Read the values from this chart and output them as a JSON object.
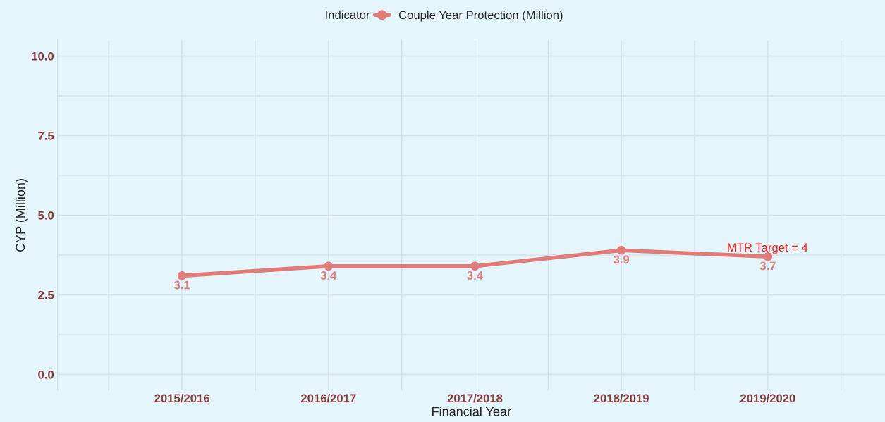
{
  "chart_data": {
    "type": "line",
    "xlabel": "Financial Year",
    "ylabel": "CYP (Million)",
    "legend_title": "Indicator",
    "categories": [
      "2015/2016",
      "2016/2017",
      "2017/2018",
      "2018/2019",
      "2019/2020"
    ],
    "series": [
      {
        "name": "Couple Year Protection (Million)",
        "color": "#e07b78",
        "values": [
          3.1,
          3.4,
          3.4,
          3.9,
          3.7
        ]
      }
    ],
    "ylim": [
      -0.5,
      10.5
    ],
    "yticks": [
      {
        "value": 0,
        "label": "0.0"
      },
      {
        "value": 2.5,
        "label": "2.5"
      },
      {
        "value": 5,
        "label": "5.0"
      },
      {
        "value": 7.5,
        "label": "7.5"
      },
      {
        "value": 10,
        "label": "10.0"
      }
    ],
    "annotations": [
      "MTR Target = 4"
    ],
    "data_labels": true,
    "grid": true,
    "legend": "top",
    "marker": "circle",
    "line_style": "solid"
  }
}
